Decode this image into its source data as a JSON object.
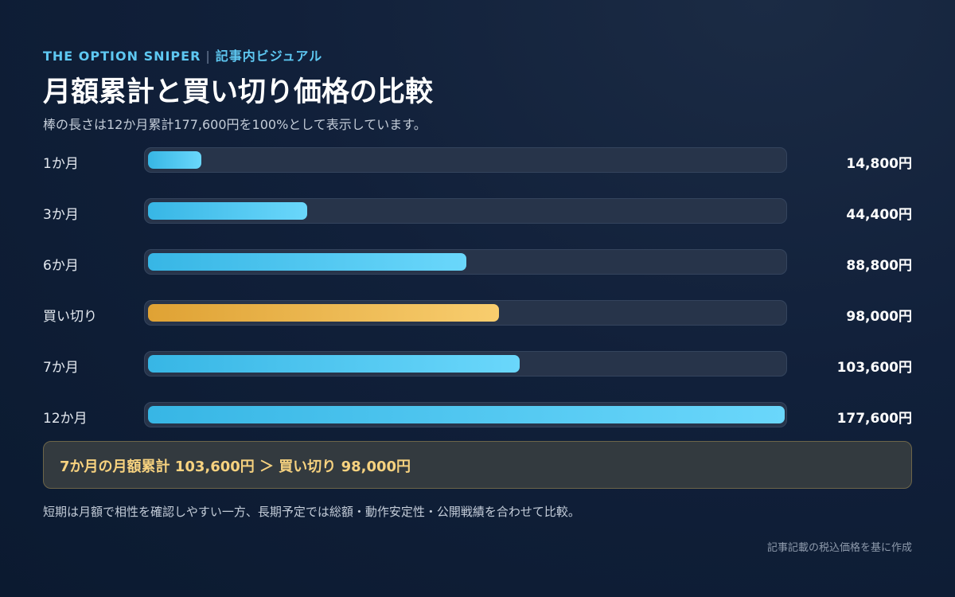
{
  "header": {
    "brand": "THE OPTION SNIPER",
    "separator": "|",
    "section": "記事内ビジュアル"
  },
  "footer": {
    "callout": "7か月の月額累計 103,600円 ＞ 買い切り 98,000円",
    "note": "短期は月額で相性を確認しやすい一方、長期予定では総額・動作安定性・公開戦績を合わせて比較。",
    "source": "記事記載の税込価格を基に作成"
  },
  "colors": {
    "monthly_bar": "#37b6e5",
    "buyout_bar": "#dfa234",
    "callout_text": "#f7d27f"
  },
  "chart_data": {
    "type": "bar",
    "orientation": "horizontal",
    "title": "月額累計と買い切り価格の比較",
    "subtitle": "棒の長さは12か月累計177,600円を100%として表示しています。",
    "xlim": [
      0,
      177600
    ],
    "categories": [
      "1か月",
      "3か月",
      "6か月",
      "買い切り",
      "7か月",
      "12か月"
    ],
    "values": [
      14800,
      44400,
      88800,
      98000,
      103600,
      177600
    ],
    "value_labels": [
      "14,800円",
      "44,400円",
      "88,800円",
      "98,000円",
      "103,600円",
      "177,600円"
    ],
    "highlight": "買い切り"
  }
}
